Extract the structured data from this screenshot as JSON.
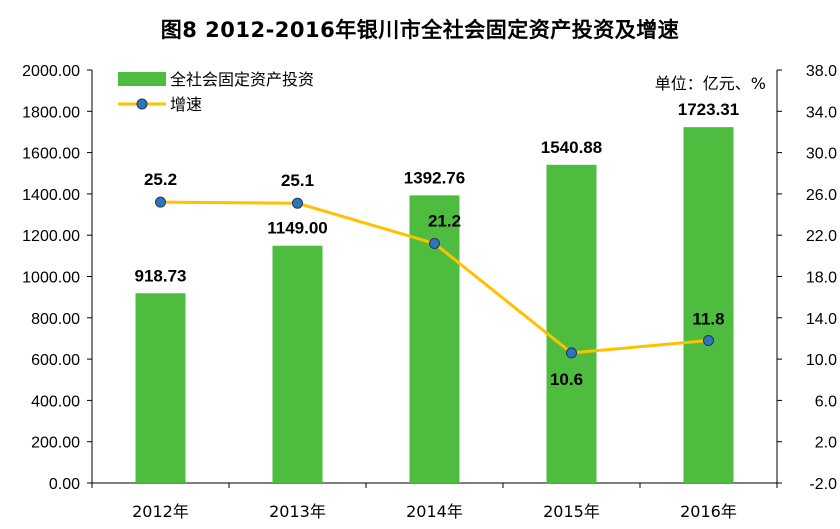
{
  "chart_data": {
    "type": "bar",
    "title": "图8    2012-2016年银川市全社会固定资产投资及增速",
    "unit_note": "单位：亿元、%",
    "categories": [
      "2012年",
      "2013年",
      "2014年",
      "2015年",
      "2016年"
    ],
    "series": [
      {
        "name": "全社会固定资产投资",
        "type": "bar",
        "axis": "left",
        "color": "#4EBD3F",
        "values": [
          918.73,
          1149.0,
          1392.76,
          1540.88,
          1723.31
        ],
        "labels": [
          "918.73",
          "1149.00",
          "1392.76",
          "1540.88",
          "1723.31"
        ]
      },
      {
        "name": "增速",
        "type": "line",
        "axis": "right",
        "color": "#FFC000",
        "marker_color": "#2E75B6",
        "values": [
          25.2,
          25.1,
          21.2,
          10.6,
          11.8
        ],
        "labels": [
          "25.2",
          "25.1",
          "21.2",
          "10.6",
          "11.8"
        ]
      }
    ],
    "y_left": {
      "ylim": [
        0,
        2000
      ],
      "ticks": [
        "0.00",
        "200.00",
        "400.00",
        "600.00",
        "800.00",
        "1000.00",
        "1200.00",
        "1400.00",
        "1600.00",
        "1800.00",
        "2000.00"
      ]
    },
    "y_right": {
      "ylim": [
        -2,
        38
      ],
      "ticks": [
        "-2.0",
        "2.0",
        "6.0",
        "10.0",
        "14.0",
        "18.0",
        "22.0",
        "26.0",
        "30.0",
        "34.0",
        "38.0"
      ]
    },
    "grid": false,
    "legend": "top-left"
  }
}
